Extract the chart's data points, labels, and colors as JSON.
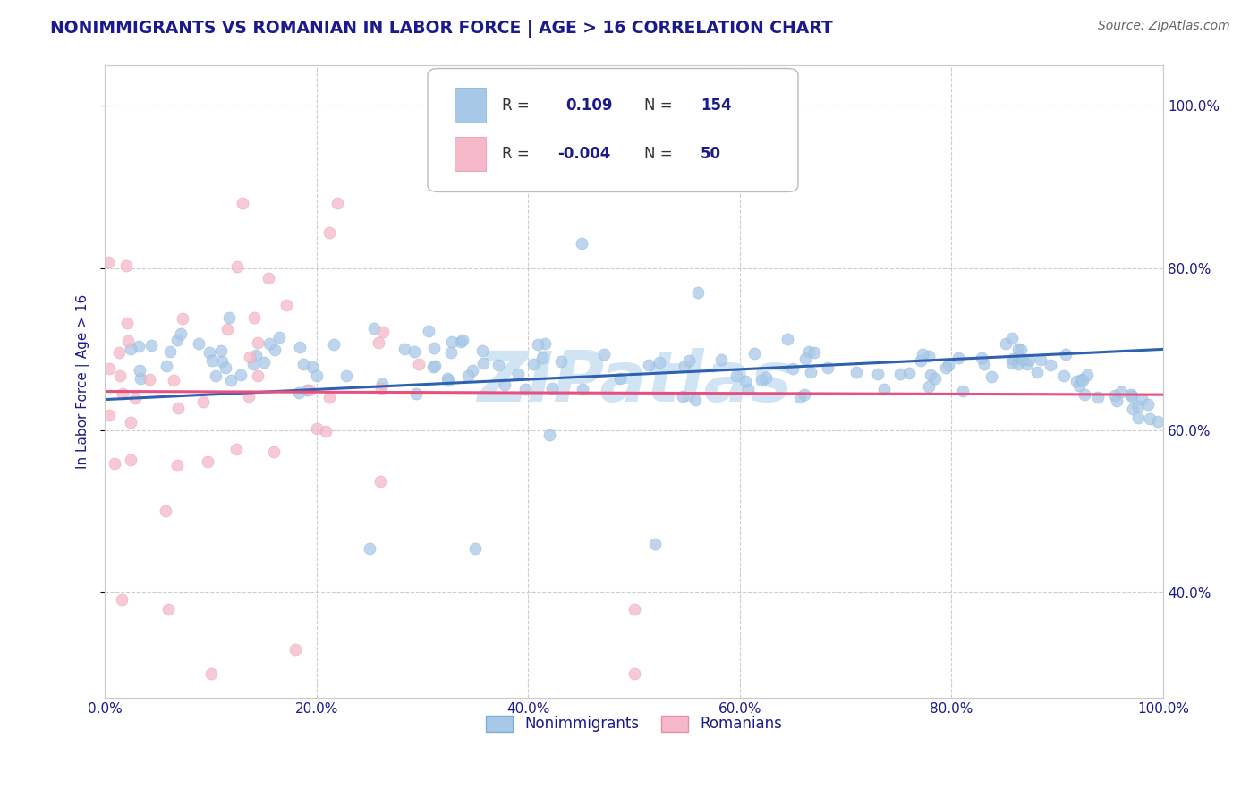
{
  "title": "NONIMMIGRANTS VS ROMANIAN IN LABOR FORCE | AGE > 16 CORRELATION CHART",
  "source_text": "Source: ZipAtlas.com",
  "ylabel": "In Labor Force | Age > 16",
  "legend_label1": "Nonimmigrants",
  "legend_label2": "Romanians",
  "blue_color": "#a8c8e8",
  "blue_edge_color": "#7bafd4",
  "pink_color": "#f4b8c8",
  "pink_edge_color": "#e890a8",
  "blue_line_color": "#3060b0",
  "pink_line_color": "#e85080",
  "title_color": "#1a1a8c",
  "axis_label_color": "#1a1a8c",
  "tick_color": "#1a1a8c",
  "watermark_color": "#d0e4f4",
  "background_color": "#ffffff",
  "grid_color": "#c8c8c8",
  "xlim": [
    0.0,
    1.0
  ],
  "ylim": [
    0.27,
    1.05
  ],
  "blue_trend_y_start": 0.638,
  "blue_trend_y_end": 0.7,
  "pink_trend_y_start": 0.648,
  "pink_trend_y_end": 0.644
}
